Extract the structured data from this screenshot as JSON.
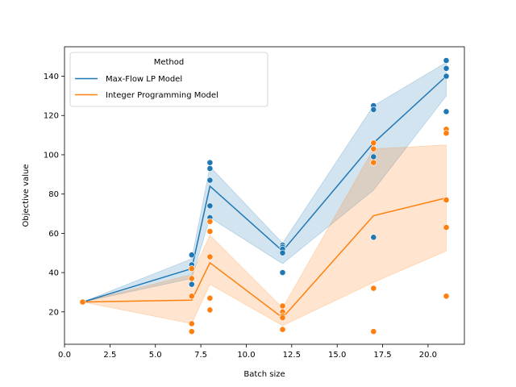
{
  "chart_data": {
    "type": "line",
    "title": "",
    "xlabel": "Batch size",
    "ylabel": "Objective value",
    "xlim": [
      0,
      22
    ],
    "ylim": [
      3.5,
      155
    ],
    "xticks": [
      0.0,
      2.5,
      5.0,
      7.5,
      10.0,
      12.5,
      15.0,
      17.5,
      20.0
    ],
    "xtick_labels": [
      "0.0",
      "2.5",
      "5.0",
      "7.5",
      "10.0",
      "12.5",
      "15.0",
      "17.5",
      "20.0"
    ],
    "yticks": [
      20,
      40,
      60,
      80,
      100,
      120,
      140
    ],
    "ytick_labels": [
      "20",
      "40",
      "60",
      "80",
      "100",
      "120",
      "140"
    ],
    "grid": false,
    "legend": {
      "title": "Method",
      "placement": "top-left"
    },
    "series": [
      {
        "name": "Max-Flow LP Model",
        "color": "#1f77b4",
        "x": [
          1,
          7,
          8,
          12,
          17,
          21
        ],
        "mean": [
          25,
          42,
          84,
          51,
          106,
          140
        ],
        "ci_low": [
          25,
          37,
          68,
          44.5,
          82,
          130
        ],
        "ci_high": [
          25,
          47,
          94,
          55,
          125,
          147
        ],
        "points": [
          [
            1,
            25
          ],
          [
            7,
            49
          ],
          [
            7,
            44
          ],
          [
            7,
            42
          ],
          [
            7,
            37
          ],
          [
            7,
            34
          ],
          [
            8,
            96
          ],
          [
            8,
            93
          ],
          [
            8,
            87
          ],
          [
            8,
            74
          ],
          [
            8,
            68
          ],
          [
            8,
            66
          ],
          [
            12,
            54
          ],
          [
            12,
            53
          ],
          [
            12,
            52
          ],
          [
            12,
            50
          ],
          [
            12,
            40
          ],
          [
            17,
            125
          ],
          [
            17,
            123
          ],
          [
            17,
            99
          ],
          [
            17,
            58
          ],
          [
            21,
            148
          ],
          [
            21,
            144
          ],
          [
            21,
            140
          ],
          [
            21,
            122
          ]
        ]
      },
      {
        "name": "Integer Programming Model",
        "color": "#ff7f0e",
        "x": [
          1,
          7,
          8,
          12,
          17,
          21
        ],
        "mean": [
          25,
          26,
          45,
          17,
          69,
          78
        ],
        "ci_low": [
          25,
          14,
          34,
          13,
          35,
          51
        ],
        "ci_high": [
          25,
          39,
          59,
          22,
          103,
          105
        ],
        "points": [
          [
            1,
            25
          ],
          [
            7,
            42
          ],
          [
            7,
            37
          ],
          [
            7,
            28
          ],
          [
            7,
            14
          ],
          [
            7,
            10
          ],
          [
            8,
            66
          ],
          [
            8,
            61
          ],
          [
            8,
            48
          ],
          [
            8,
            27
          ],
          [
            8,
            21
          ],
          [
            12,
            23
          ],
          [
            12,
            20
          ],
          [
            12,
            18
          ],
          [
            12,
            17
          ],
          [
            12,
            11
          ],
          [
            17,
            106
          ],
          [
            17,
            103
          ],
          [
            17,
            96
          ],
          [
            17,
            32
          ],
          [
            17,
            10
          ],
          [
            21,
            113
          ],
          [
            21,
            111
          ],
          [
            21,
            77
          ],
          [
            21,
            63
          ],
          [
            21,
            28
          ]
        ]
      }
    ]
  }
}
